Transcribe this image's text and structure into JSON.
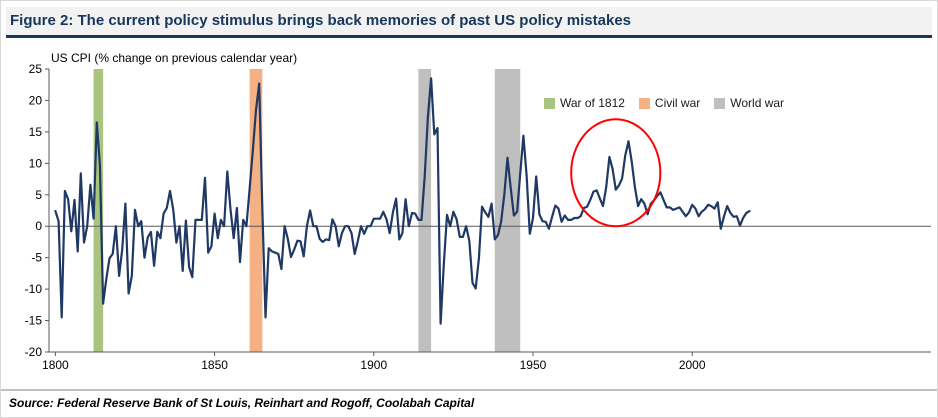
{
  "figure": {
    "title": "Figure 2: The current policy stimulus brings back memories of past US policy mistakes",
    "source": "Source: Federal Reserve Bank of St Louis, Reinhart and Rogoff, Coolabah Capital"
  },
  "chart_data": {
    "type": "line",
    "title": "Figure 2: The current policy stimulus brings back memories of past US policy mistakes",
    "ylabel": "US CPI (% change on previous calendar year)",
    "xlabel": "",
    "ylim": [
      -20,
      25
    ],
    "xlim": [
      1798,
      2075
    ],
    "y_ticks": [
      25,
      20,
      15,
      10,
      5,
      0,
      -5,
      -10,
      -15,
      -20
    ],
    "x_ticks": [
      1800,
      1850,
      1900,
      1950,
      2000
    ],
    "grid": "zero-line-only",
    "line_color": "#1f3864",
    "axis_color": "#595959",
    "legend_position": "top-right-inside",
    "legend": [
      {
        "label": "War of 1812",
        "color": "#a9c47f"
      },
      {
        "label": "Civil war",
        "color": "#f4b183"
      },
      {
        "label": "World war",
        "color": "#bfbfbf"
      }
    ],
    "bands": [
      {
        "label": "War of 1812",
        "color": "#a9c47f",
        "from": 1812,
        "to": 1815
      },
      {
        "label": "Civil war",
        "color": "#f4b183",
        "from": 1861,
        "to": 1865
      },
      {
        "label": "World war",
        "color": "#bfbfbf",
        "from": 1914,
        "to": 1918
      },
      {
        "label": "World war",
        "color": "#bfbfbf",
        "from": 1938,
        "to": 1946
      }
    ],
    "annotation_ellipse": {
      "center_year": 1976,
      "center_value": 8.5,
      "radius_years": 14,
      "radius_value": 8.5,
      "color": "#ff0000"
    },
    "series": [
      {
        "name": "US CPI % change YoY",
        "start_year": 1800,
        "end_year": 2018,
        "values": [
          2.4,
          0.8,
          -14.5,
          5.6,
          4.3,
          -0.8,
          4.2,
          -4.0,
          8.4,
          -2.6,
          0.0,
          6.6,
          1.2,
          16.5,
          9.8,
          -12.3,
          -8.4,
          -5.1,
          -4.4,
          0.0,
          -7.9,
          -3.7,
          3.6,
          -10.7,
          -7.9,
          2.6,
          0.0,
          0.8,
          -5.0,
          -1.8,
          -0.9,
          -6.3,
          -0.9,
          -1.9,
          2.0,
          2.9,
          5.6,
          2.7,
          -2.6,
          0.0,
          -7.1,
          0.9,
          -6.5,
          -8.1,
          1.0,
          1.0,
          1.0,
          7.7,
          -4.2,
          -3.2,
          2.0,
          -1.9,
          1.0,
          0.0,
          8.7,
          2.7,
          -1.9,
          2.9,
          -5.7,
          1.0,
          0.0,
          5.9,
          12.0,
          18.5,
          22.7,
          3.0,
          -14.5,
          -3.5,
          -4.0,
          -4.2,
          -4.4,
          -6.8,
          0.0,
          -2.0,
          -4.9,
          -3.7,
          -2.3,
          -2.4,
          -4.8,
          0.0,
          2.5,
          0.0,
          0.0,
          -2.0,
          -2.5,
          -2.1,
          -2.2,
          1.1,
          0.0,
          -3.2,
          -1.1,
          0.0,
          0.0,
          -1.1,
          -4.4,
          -2.3,
          0.0,
          -1.2,
          0.0,
          0.0,
          1.2,
          1.2,
          1.2,
          2.3,
          1.1,
          -1.1,
          2.2,
          4.4,
          -2.1,
          -1.1,
          4.3,
          0.0,
          2.1,
          2.0,
          1.0,
          1.0,
          7.9,
          17.4,
          23.5,
          14.6,
          15.6,
          -15.5,
          -6.1,
          1.8,
          0.0,
          2.3,
          1.1,
          -1.7,
          -1.7,
          0.0,
          -2.3,
          -9.0,
          -9.9,
          -5.1,
          3.1,
          2.2,
          1.5,
          3.6,
          -2.1,
          -1.4,
          0.7,
          5.0,
          10.9,
          6.1,
          1.7,
          2.3,
          8.3,
          14.4,
          8.1,
          -1.2,
          1.3,
          7.9,
          1.9,
          0.8,
          0.7,
          -0.4,
          1.5,
          3.3,
          2.8,
          0.7,
          1.7,
          1.0,
          1.0,
          1.3,
          1.3,
          1.6,
          2.9,
          3.1,
          4.2,
          5.5,
          5.7,
          4.4,
          3.2,
          6.2,
          11.0,
          9.1,
          5.8,
          6.5,
          7.6,
          11.3,
          13.5,
          10.3,
          6.2,
          3.2,
          4.3,
          3.6,
          1.9,
          3.6,
          4.1,
          4.8,
          5.4,
          4.2,
          3.0,
          3.0,
          2.6,
          2.8,
          3.0,
          2.3,
          1.6,
          2.2,
          3.4,
          2.8,
          1.6,
          2.3,
          2.7,
          3.4,
          3.2,
          2.8,
          3.8,
          -0.4,
          1.6,
          3.2,
          2.1,
          1.5,
          1.6,
          0.1,
          1.3,
          2.1,
          2.4
        ]
      }
    ]
  }
}
